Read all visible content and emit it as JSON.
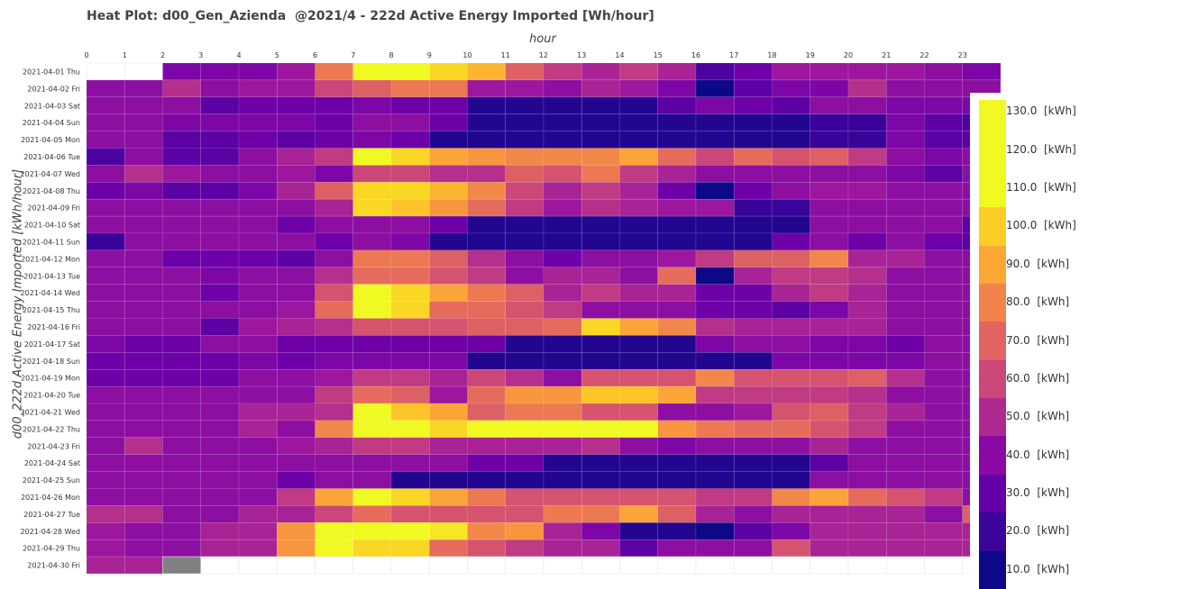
{
  "chart_data": {
    "type": "heatmap",
    "title": "Heat Plot: d00_Gen_Azienda  @2021/4 - 222d Active Energy Imported [Wh/hour]",
    "xlabel": "hour",
    "ylabel": "d00_222d Active Energy Imported [kWh/hour]",
    "x": [
      "0",
      "1",
      "2",
      "3",
      "4",
      "5",
      "6",
      "7",
      "8",
      "9",
      "10",
      "11",
      "12",
      "13",
      "14",
      "15",
      "16",
      "17",
      "18",
      "19",
      "20",
      "21",
      "22",
      "23"
    ],
    "y": [
      "2021-04-01 Thu",
      "2021-04-02 Fri",
      "2021-04-03 Sat",
      "2021-04-04 Sun",
      "2021-04-05 Mon",
      "2021-04-06 Tue",
      "2021-04-07 Wed",
      "2021-04-08 Thu",
      "2021-04-09 Fri",
      "2021-04-10 Sat",
      "2021-04-11 Sun",
      "2021-04-12 Mon",
      "2021-04-13 Tue",
      "2021-04-14 Wed",
      "2021-04-15 Thu",
      "2021-04-16 Fri",
      "2021-04-17 Sat",
      "2021-04-18 Sun",
      "2021-04-19 Mon",
      "2021-04-20 Tue",
      "2021-04-21 Wed",
      "2021-04-22 Thu",
      "2021-04-23 Fri",
      "2021-04-24 Sat",
      "2021-04-25 Sun",
      "2021-04-26 Mon",
      "2021-04-27 Tue",
      "2021-04-28 Wed",
      "2021-04-29 Thu",
      "2021-04-30 Fri"
    ],
    "values": [
      [
        null,
        null,
        35,
        35,
        35,
        45,
        85,
        125,
        125,
        115,
        105,
        75,
        60,
        50,
        60,
        50,
        20,
        30,
        45,
        45,
        45,
        45,
        40,
        35
      ],
      [
        40,
        40,
        55,
        40,
        45,
        45,
        65,
        75,
        85,
        85,
        45,
        45,
        40,
        50,
        45,
        35,
        5,
        25,
        35,
        35,
        55,
        40,
        40,
        40
      ],
      [
        40,
        40,
        40,
        25,
        30,
        30,
        30,
        35,
        30,
        30,
        10,
        10,
        10,
        10,
        10,
        25,
        35,
        30,
        25,
        40,
        40,
        35,
        35,
        35
      ],
      [
        40,
        40,
        35,
        35,
        35,
        35,
        30,
        40,
        40,
        30,
        10,
        10,
        10,
        10,
        10,
        10,
        10,
        10,
        10,
        15,
        15,
        35,
        25,
        20
      ],
      [
        40,
        40,
        25,
        25,
        30,
        25,
        30,
        35,
        30,
        10,
        10,
        10,
        10,
        10,
        10,
        10,
        10,
        10,
        10,
        15,
        15,
        35,
        25,
        25
      ],
      [
        20,
        40,
        25,
        25,
        40,
        50,
        60,
        125,
        115,
        100,
        95,
        90,
        90,
        90,
        100,
        80,
        65,
        80,
        70,
        75,
        60,
        40,
        35,
        40
      ],
      [
        40,
        55,
        45,
        40,
        40,
        45,
        35,
        65,
        65,
        55,
        55,
        75,
        70,
        85,
        60,
        50,
        40,
        40,
        40,
        40,
        40,
        35,
        25,
        40
      ],
      [
        30,
        35,
        25,
        25,
        35,
        50,
        75,
        115,
        115,
        105,
        90,
        65,
        50,
        60,
        50,
        30,
        5,
        30,
        40,
        45,
        45,
        40,
        40,
        40
      ],
      [
        40,
        40,
        40,
        40,
        40,
        40,
        50,
        115,
        110,
        95,
        80,
        60,
        45,
        55,
        50,
        45,
        45,
        15,
        15,
        40,
        40,
        40,
        40,
        40
      ],
      [
        40,
        40,
        40,
        40,
        40,
        30,
        40,
        40,
        40,
        30,
        10,
        10,
        10,
        10,
        10,
        10,
        10,
        10,
        10,
        40,
        40,
        40,
        40,
        25
      ],
      [
        15,
        40,
        40,
        40,
        40,
        40,
        30,
        40,
        35,
        10,
        10,
        10,
        10,
        10,
        10,
        10,
        10,
        10,
        30,
        40,
        30,
        40,
        30,
        25
      ],
      [
        40,
        40,
        30,
        30,
        30,
        25,
        40,
        85,
        85,
        75,
        55,
        40,
        30,
        40,
        40,
        45,
        60,
        75,
        75,
        90,
        50,
        50,
        40,
        40
      ],
      [
        40,
        40,
        40,
        35,
        40,
        40,
        55,
        80,
        80,
        70,
        60,
        40,
        50,
        50,
        40,
        80,
        5,
        50,
        60,
        60,
        55,
        40,
        40,
        40
      ],
      [
        40,
        40,
        40,
        30,
        40,
        40,
        70,
        125,
        115,
        100,
        85,
        75,
        50,
        60,
        50,
        50,
        30,
        30,
        50,
        60,
        50,
        40,
        40,
        40
      ],
      [
        40,
        40,
        40,
        40,
        40,
        45,
        80,
        125,
        115,
        80,
        80,
        70,
        60,
        40,
        40,
        40,
        30,
        30,
        25,
        35,
        50,
        40,
        40,
        40
      ],
      [
        40,
        40,
        40,
        25,
        45,
        50,
        55,
        70,
        70,
        70,
        75,
        75,
        80,
        115,
        100,
        90,
        55,
        50,
        50,
        50,
        50,
        40,
        40,
        40
      ],
      [
        35,
        30,
        30,
        40,
        40,
        30,
        30,
        30,
        30,
        30,
        30,
        10,
        10,
        10,
        10,
        10,
        35,
        40,
        40,
        35,
        35,
        30,
        40,
        40
      ],
      [
        30,
        30,
        30,
        30,
        35,
        30,
        35,
        35,
        35,
        35,
        10,
        10,
        10,
        10,
        10,
        10,
        10,
        10,
        35,
        35,
        35,
        35,
        40,
        40
      ],
      [
        30,
        30,
        30,
        30,
        40,
        40,
        45,
        60,
        60,
        50,
        65,
        55,
        40,
        70,
        70,
        70,
        90,
        70,
        70,
        70,
        75,
        55,
        40,
        40
      ],
      [
        40,
        40,
        40,
        40,
        40,
        40,
        60,
        80,
        75,
        45,
        80,
        95,
        95,
        110,
        110,
        100,
        60,
        60,
        60,
        60,
        55,
        40,
        40,
        40
      ],
      [
        40,
        40,
        40,
        40,
        50,
        50,
        55,
        125,
        110,
        100,
        75,
        85,
        85,
        70,
        70,
        40,
        40,
        45,
        70,
        75,
        60,
        50,
        40,
        40
      ],
      [
        40,
        40,
        40,
        40,
        50,
        40,
        90,
        125,
        125,
        115,
        125,
        125,
        125,
        125,
        125,
        95,
        85,
        80,
        80,
        70,
        60,
        40,
        40,
        40
      ],
      [
        40,
        55,
        40,
        40,
        40,
        45,
        50,
        60,
        60,
        50,
        50,
        50,
        50,
        55,
        40,
        35,
        40,
        40,
        40,
        50,
        40,
        40,
        40,
        40
      ],
      [
        40,
        40,
        40,
        40,
        40,
        40,
        40,
        40,
        40,
        40,
        30,
        30,
        10,
        10,
        10,
        10,
        10,
        10,
        10,
        25,
        40,
        40,
        40,
        40
      ],
      [
        40,
        40,
        40,
        40,
        40,
        30,
        40,
        40,
        10,
        10,
        10,
        10,
        10,
        10,
        10,
        10,
        10,
        10,
        10,
        40,
        40,
        40,
        40,
        40
      ],
      [
        40,
        40,
        40,
        40,
        40,
        60,
        100,
        125,
        115,
        100,
        85,
        70,
        70,
        70,
        70,
        70,
        60,
        60,
        90,
        100,
        80,
        70,
        60,
        40
      ],
      [
        55,
        55,
        40,
        40,
        50,
        50,
        65,
        80,
        70,
        70,
        70,
        70,
        85,
        85,
        100,
        75,
        50,
        40,
        50,
        50,
        50,
        50,
        40,
        75
      ],
      [
        45,
        40,
        40,
        50,
        50,
        95,
        125,
        125,
        125,
        120,
        90,
        95,
        50,
        35,
        10,
        10,
        5,
        25,
        35,
        50,
        50,
        50,
        50,
        50
      ],
      [
        45,
        40,
        40,
        50,
        50,
        95,
        125,
        115,
        115,
        80,
        70,
        60,
        50,
        50,
        25,
        40,
        40,
        40,
        70,
        50,
        50,
        50,
        50,
        50
      ],
      [
        50,
        50,
        "missing",
        null,
        null,
        null,
        null,
        null,
        null,
        null,
        null,
        null,
        null,
        null,
        null,
        null,
        null,
        null,
        null,
        null,
        null,
        null,
        null,
        null
      ]
    ],
    "colorbar": {
      "ticks": [
        10,
        20,
        30,
        40,
        50,
        60,
        70,
        80,
        90,
        100,
        110,
        120,
        130
      ],
      "labels": [
        "10.0  [kWh]",
        "20.0  [kWh]",
        "30.0  [kWh]",
        "40.0  [kWh]",
        "50.0  [kWh]",
        "60.0  [kWh]",
        "70.0  [kWh]",
        "80.0  [kWh]",
        "90.0  [kWh]",
        "100.0  [kWh]",
        "110.0  [kWh]",
        "120.0  [kWh]",
        "130.0  [kWh]"
      ],
      "colors": [
        "#0d0887",
        "#3b049a",
        "#6300a7",
        "#8a09a5",
        "#ae2891",
        "#cb4679",
        "#e16462",
        "#f1834b",
        "#fca636",
        "#fcce25",
        "#f0f921",
        "#f0f921"
      ],
      "range": [
        5,
        135
      ]
    },
    "colormap": "plasma",
    "missing_color": "#808080",
    "grid": true
  }
}
